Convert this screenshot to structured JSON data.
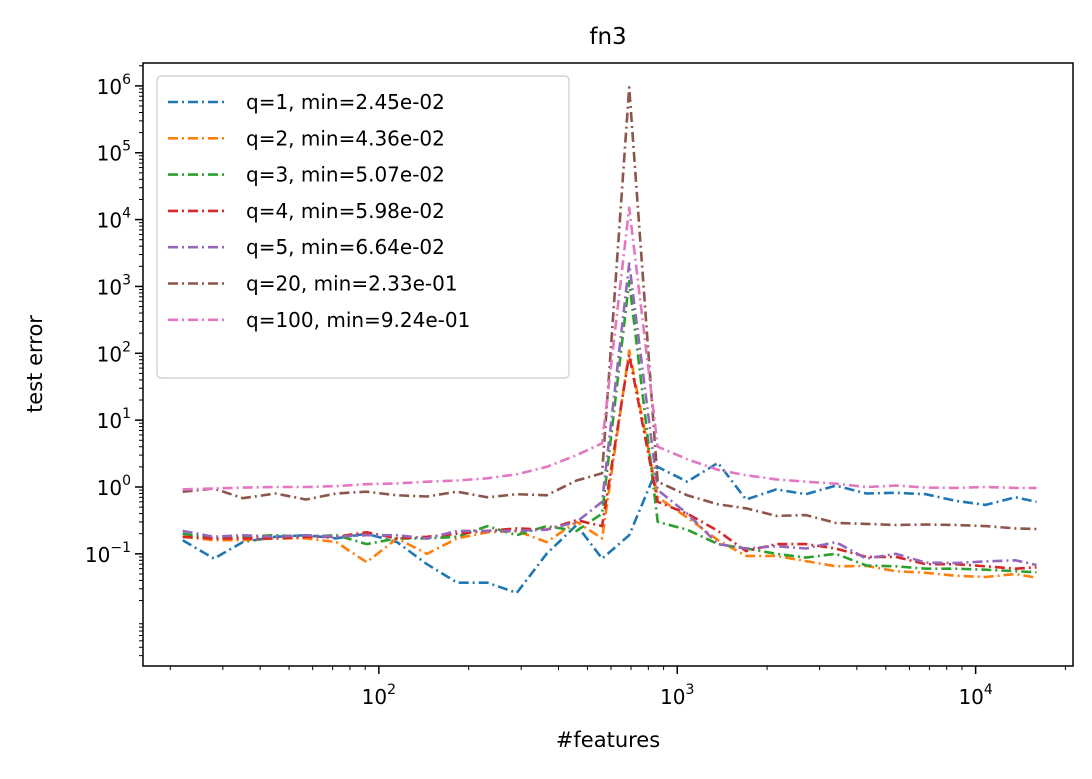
{
  "chart_data": {
    "type": "line",
    "title": "fn3",
    "xlabel": "#features",
    "ylabel": "test error",
    "xscale": "log",
    "yscale": "log",
    "xlim": [
      16.2,
      21200
    ],
    "ylim": [
      0.0021,
      2200000
    ],
    "xticks": [
      {
        "value": 100,
        "base": "10",
        "exp": "2"
      },
      {
        "value": 1000,
        "base": "10",
        "exp": "3"
      },
      {
        "value": 10000,
        "base": "10",
        "exp": "4"
      }
    ],
    "yticks": [
      {
        "value": 0.1,
        "base": "10",
        "exp": "−1"
      },
      {
        "value": 1,
        "base": "10",
        "exp": "0"
      },
      {
        "value": 10,
        "base": "10",
        "exp": "1"
      },
      {
        "value": 100,
        "base": "10",
        "exp": "2"
      },
      {
        "value": 1000,
        "base": "10",
        "exp": "3"
      },
      {
        "value": 10000,
        "base": "10",
        "exp": "4"
      },
      {
        "value": 100000,
        "base": "10",
        "exp": "5"
      },
      {
        "value": 1000000,
        "base": "10",
        "exp": "6"
      }
    ],
    "grid": false,
    "legend_position": "top-left",
    "x": [
      22,
      28,
      35,
      45,
      57,
      72,
      91,
      115,
      145,
      183,
      231,
      290,
      365,
      460,
      560,
      690,
      860,
      1080,
      1370,
      1700,
      2150,
      2700,
      3400,
      4300,
      5400,
      6800,
      8600,
      10800,
      13600,
      16000
    ],
    "series": [
      {
        "name": "q=1, min=2.45e-02",
        "color": "#1f77b4",
        "values": [
          0.16,
          0.085,
          0.15,
          0.18,
          0.19,
          0.17,
          0.2,
          0.15,
          0.07,
          0.037,
          0.037,
          0.026,
          0.1,
          0.27,
          0.085,
          0.19,
          2.0,
          1.2,
          2.3,
          0.65,
          0.92,
          0.78,
          1.05,
          0.8,
          0.82,
          0.78,
          0.62,
          0.54,
          0.7,
          0.6
        ]
      },
      {
        "name": "q=2, min=4.36e-02",
        "color": "#ff7f0e",
        "values": [
          0.18,
          0.16,
          0.16,
          0.17,
          0.17,
          0.15,
          0.075,
          0.17,
          0.1,
          0.17,
          0.21,
          0.22,
          0.15,
          0.3,
          0.17,
          110,
          0.7,
          0.35,
          0.16,
          0.093,
          0.093,
          0.078,
          0.065,
          0.066,
          0.055,
          0.052,
          0.047,
          0.045,
          0.05,
          0.044
        ]
      },
      {
        "name": "q=3, min=5.07e-02",
        "color": "#2ca02c",
        "values": [
          0.2,
          0.17,
          0.18,
          0.19,
          0.18,
          0.19,
          0.14,
          0.17,
          0.17,
          0.18,
          0.26,
          0.19,
          0.26,
          0.22,
          0.4,
          1200,
          0.3,
          0.23,
          0.14,
          0.12,
          0.1,
          0.088,
          0.1,
          0.067,
          0.065,
          0.06,
          0.06,
          0.058,
          0.055,
          0.053
        ]
      },
      {
        "name": "q=4, min=5.98e-02",
        "color": "#d62728",
        "values": [
          0.18,
          0.17,
          0.17,
          0.17,
          0.18,
          0.18,
          0.21,
          0.17,
          0.18,
          0.2,
          0.22,
          0.24,
          0.23,
          0.32,
          0.26,
          95,
          0.6,
          0.4,
          0.22,
          0.11,
          0.14,
          0.14,
          0.12,
          0.09,
          0.09,
          0.07,
          0.07,
          0.065,
          0.06,
          0.063
        ]
      },
      {
        "name": "q=5, min=6.64e-02",
        "color": "#9467bd",
        "values": [
          0.22,
          0.18,
          0.19,
          0.18,
          0.19,
          0.18,
          0.19,
          0.19,
          0.17,
          0.22,
          0.22,
          0.22,
          0.23,
          0.3,
          0.6,
          2200,
          0.9,
          0.4,
          0.14,
          0.12,
          0.13,
          0.12,
          0.15,
          0.085,
          0.1,
          0.074,
          0.073,
          0.077,
          0.08,
          0.068
        ]
      },
      {
        "name": "q=20, min=2.33e-01",
        "color": "#8c564b",
        "values": [
          0.85,
          0.95,
          0.68,
          0.8,
          0.65,
          0.8,
          0.85,
          0.75,
          0.72,
          0.85,
          0.7,
          0.78,
          0.75,
          1.25,
          1.6,
          950000,
          1.2,
          0.75,
          0.55,
          0.48,
          0.37,
          0.38,
          0.29,
          0.28,
          0.27,
          0.275,
          0.27,
          0.26,
          0.24,
          0.235
        ]
      },
      {
        "name": "q=100, min=9.24e-01",
        "color": "#e377c2",
        "values": [
          0.92,
          0.95,
          0.98,
          1.0,
          1.0,
          1.03,
          1.1,
          1.13,
          1.2,
          1.25,
          1.35,
          1.55,
          2.0,
          3.0,
          4.5,
          15000,
          4.0,
          2.6,
          1.8,
          1.5,
          1.3,
          1.2,
          1.12,
          1.0,
          1.05,
          0.98,
          0.97,
          1.0,
          0.97,
          0.97
        ]
      }
    ]
  }
}
